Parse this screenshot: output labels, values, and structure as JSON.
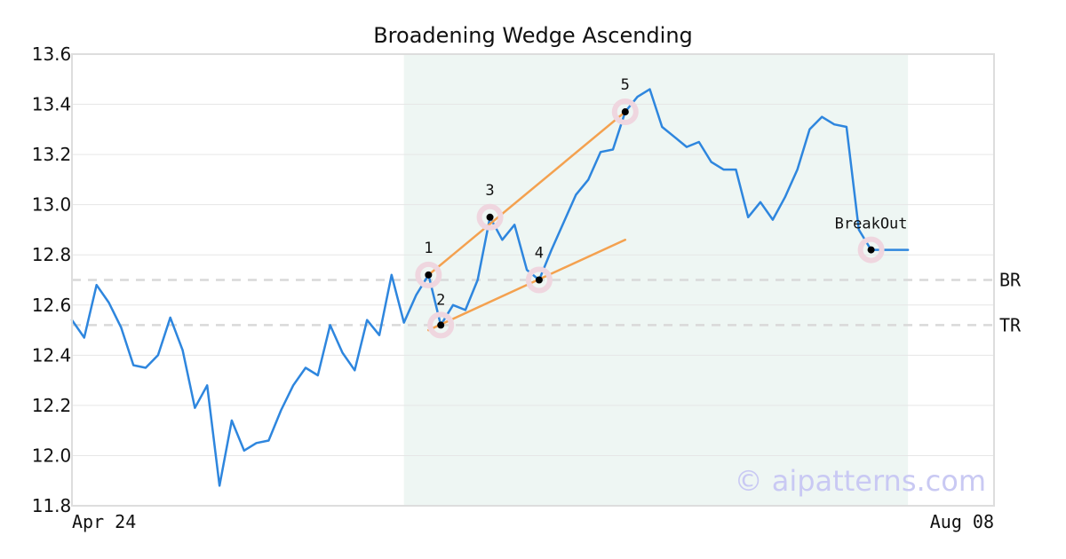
{
  "chart_data": {
    "type": "line",
    "title": "Broadening Wedge Ascending",
    "xlabel": "",
    "ylabel": "",
    "ylim": [
      11.8,
      13.6
    ],
    "yticks": [
      "11.8",
      "12.0",
      "12.2",
      "12.4",
      "12.6",
      "12.8",
      "13.0",
      "13.2",
      "13.4",
      "13.6"
    ],
    "xticks": [
      {
        "label": "Apr 24",
        "index": 0
      },
      {
        "label": "Aug 08",
        "index": 75
      }
    ],
    "grid": true,
    "series": [
      {
        "color": "#2e86de",
        "values": [
          12.54,
          12.47,
          12.68,
          12.61,
          12.51,
          12.36,
          12.35,
          12.4,
          12.55,
          12.42,
          12.19,
          12.28,
          11.88,
          12.14,
          12.02,
          12.05,
          12.06,
          12.18,
          12.28,
          12.35,
          12.32,
          12.52,
          12.41,
          12.34,
          12.54,
          12.48,
          12.72,
          12.53,
          12.64,
          12.72,
          12.52,
          12.6,
          12.58,
          12.7,
          12.95,
          12.86,
          12.92,
          12.74,
          12.7,
          12.82,
          12.93,
          13.04,
          13.1,
          13.21,
          13.22,
          13.37,
          13.43,
          13.46,
          13.31,
          13.27,
          13.23,
          13.25,
          13.17,
          13.14,
          13.14,
          12.95,
          13.01,
          12.94,
          13.03,
          13.14,
          13.3,
          13.35,
          13.32,
          13.31,
          12.9,
          12.82,
          12.82,
          12.82,
          12.82
        ]
      }
    ],
    "pattern_region": {
      "start_index": 27,
      "end_index": 68,
      "color": "#eef6f3"
    },
    "levels": [
      {
        "label": "BR",
        "value": 12.7
      },
      {
        "label": "TR",
        "value": 12.52
      }
    ],
    "trendlines": [
      {
        "color": "#f4a14f",
        "points": [
          [
            29,
            12.72
          ],
          [
            45,
            13.37
          ]
        ]
      },
      {
        "color": "#f4a14f",
        "points": [
          [
            29,
            12.5
          ],
          [
            45,
            12.86
          ]
        ]
      }
    ],
    "points": [
      {
        "label": "1",
        "index": 29,
        "value": 12.72
      },
      {
        "label": "2",
        "index": 30,
        "value": 12.52
      },
      {
        "label": "3",
        "index": 34,
        "value": 12.95
      },
      {
        "label": "4",
        "index": 38,
        "value": 12.7
      },
      {
        "label": "5",
        "index": 45,
        "value": 13.37
      },
      {
        "label": "BreakOut",
        "index": 65,
        "value": 12.82
      }
    ],
    "watermark": "© aipatterns.com"
  }
}
